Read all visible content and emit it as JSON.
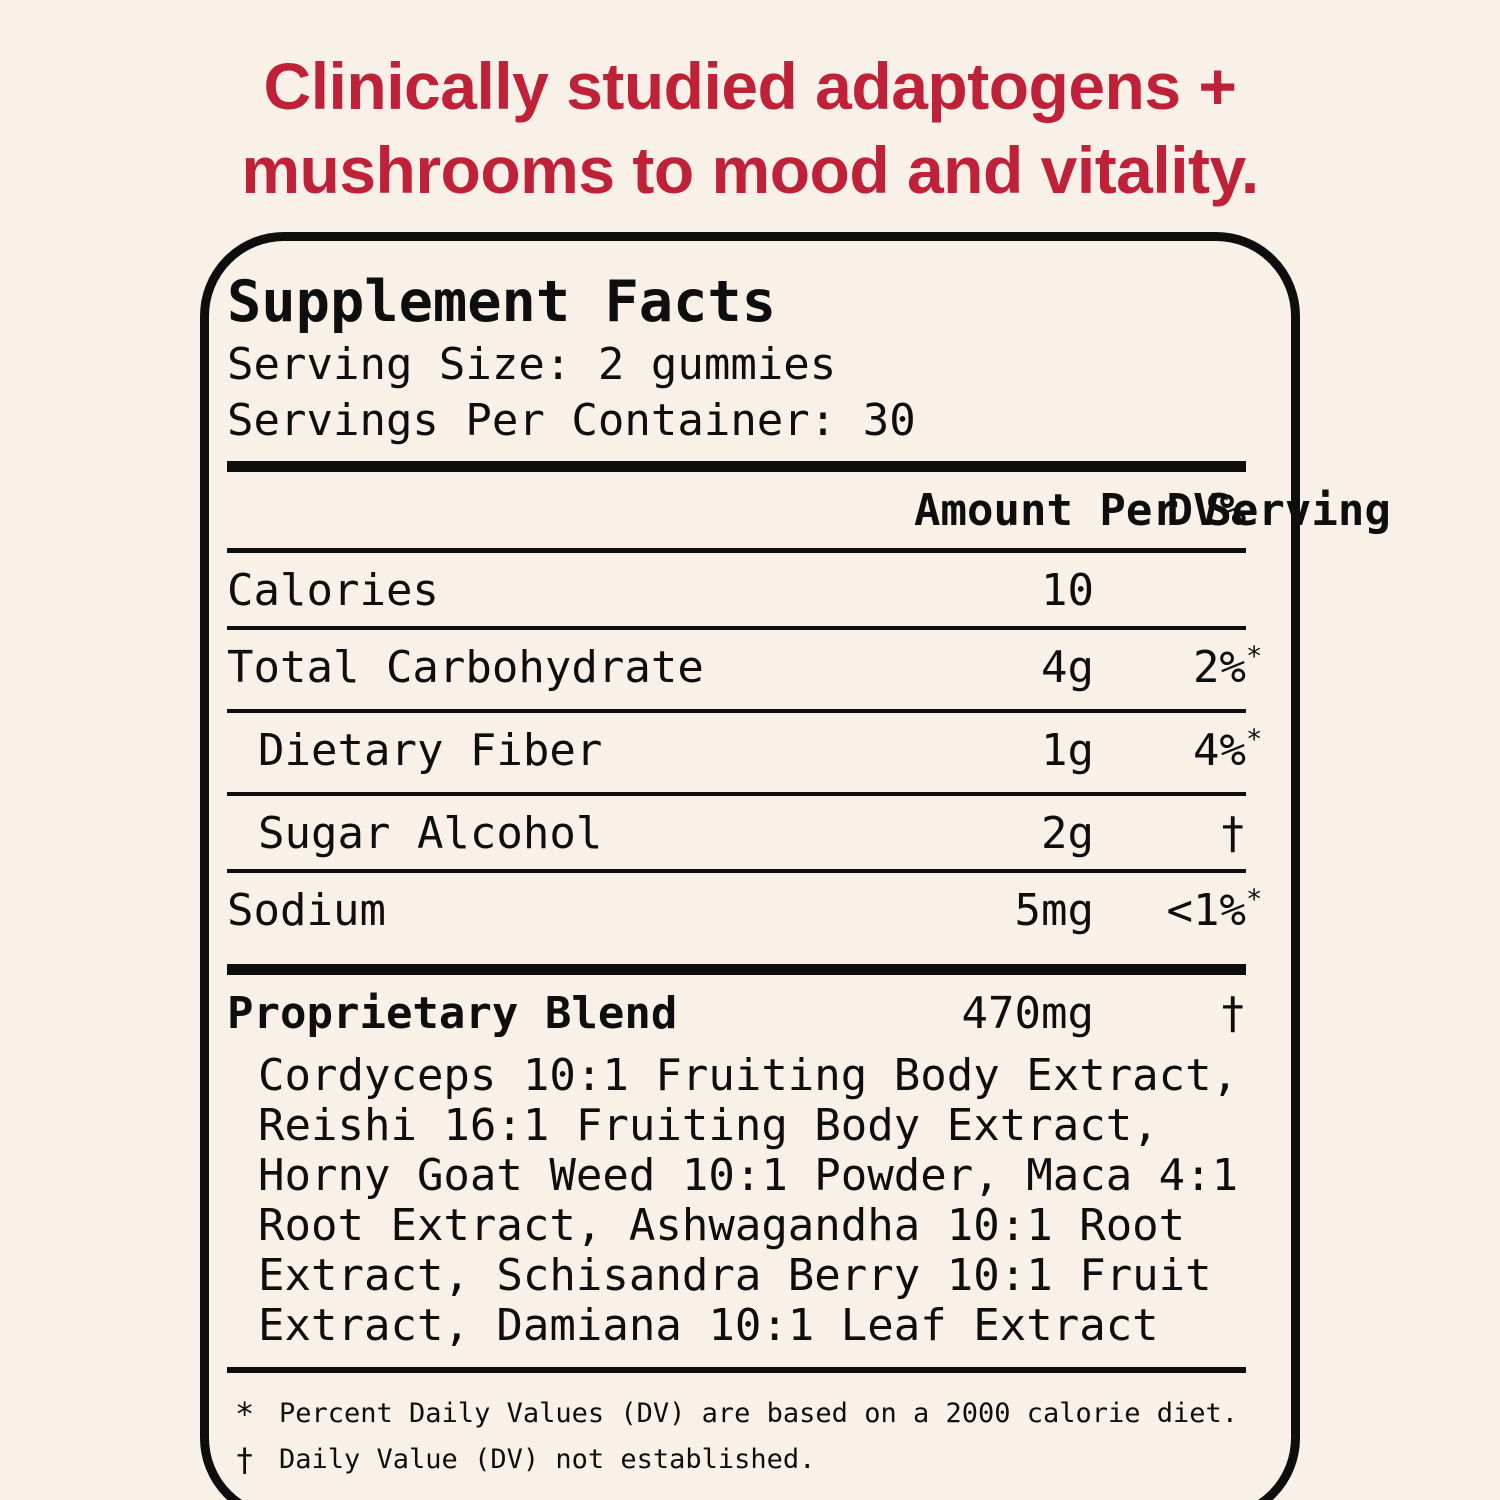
{
  "page": {
    "background": "#f9f1e8",
    "accent_red": "#bf2238",
    "ink": "#0e0e0e"
  },
  "headline": {
    "line1": "Clinically studied adaptogens +",
    "line2": "mushrooms to mood and vitality."
  },
  "panel": {
    "title": "Supplement Facts",
    "serving_size": "Serving Size: 2 gummies",
    "servings_per_container": "Servings Per Container: 30",
    "header": {
      "amount": "Amount Per Serving",
      "dv": "DV%"
    },
    "rows": [
      {
        "label": "Calories",
        "amount": "10",
        "dv": "",
        "dv_sup": ""
      },
      {
        "label": "Total Carbohydrate",
        "amount": "4g",
        "dv": "2%",
        "dv_sup": "*"
      },
      {
        "label": "Dietary Fiber",
        "amount": "1g",
        "dv": "4%",
        "dv_sup": "*"
      },
      {
        "label": "Sugar Alcohol",
        "amount": "2g",
        "dv": "†",
        "dv_sup": ""
      },
      {
        "label": "Sodium",
        "amount": "5mg",
        "dv": "<1%",
        "dv_sup": "*"
      }
    ],
    "blend": {
      "label": "Proprietary Blend",
      "amount": "470mg",
      "dv": "†",
      "ingredients": "Cordyceps 10:1 Fruiting Body Extract, Reishi 16:1 Fruiting Body Extract, Horny Goat Weed 10:1 Powder, Maca 4:1 Root Extract, Ashwagandha 10:1 Root Extract, Schisandra Berry 10:1 Fruit Extract, Damiana 10:1 Leaf Extract"
    },
    "footnotes": [
      {
        "symbol": "*",
        "text": "Percent Daily Values (DV) are based on a 2000 calorie diet."
      },
      {
        "symbol": "†",
        "text": "Daily Value (DV) not established."
      }
    ]
  }
}
